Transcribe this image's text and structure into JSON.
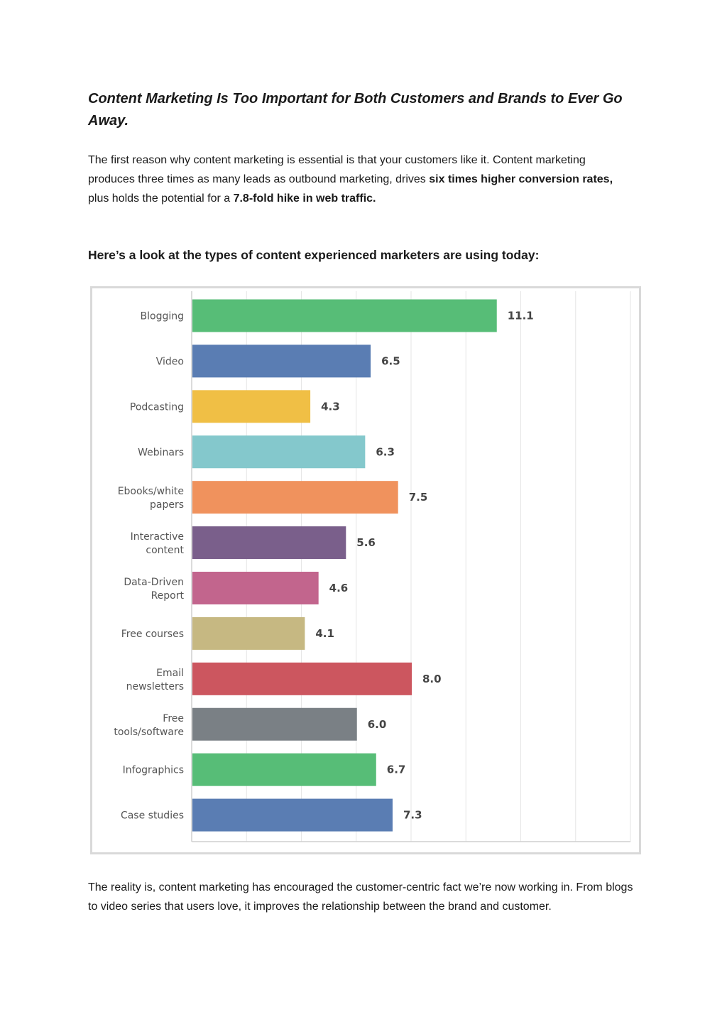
{
  "article": {
    "title": "Content Marketing Is Too Important for Both Customers and Brands to Ever Go Away.",
    "intro": {
      "t1": "The first reason why content marketing is essential is that your customers like it. Content marketing produces three times as many leads as outbound marketing, drives ",
      "b1": "six times higher conversion rates,",
      "t2": " plus holds the potential for a ",
      "b2": "7.8-fold hike in web traffic."
    },
    "subhead": "Here’s a look at the types of content experienced marketers are using today:",
    "closing": "The reality is, content marketing has encouraged the customer-centric fact we’re now working in. From blogs to video series that users love, it improves the relationship between the brand and customer."
  },
  "chart_data": {
    "type": "bar",
    "orientation": "horizontal",
    "title": "",
    "xlabel": "",
    "ylabel": "",
    "xlim": [
      0,
      16
    ],
    "grid": true,
    "categories": [
      [
        "Blogging"
      ],
      [
        "Video"
      ],
      [
        "Podcasting"
      ],
      [
        "Webinars"
      ],
      [
        "Ebooks/white",
        "papers"
      ],
      [
        "Interactive",
        "content"
      ],
      [
        "Data-Driven",
        "Report"
      ],
      [
        "Free courses"
      ],
      [
        "Email",
        "newsletters"
      ],
      [
        "Free",
        "tools/software"
      ],
      [
        "Infographics"
      ],
      [
        "Case studies"
      ]
    ],
    "values": [
      11.1,
      6.5,
      4.3,
      6.3,
      7.5,
      5.6,
      4.6,
      4.1,
      8.0,
      6.0,
      6.7,
      7.3
    ],
    "value_labels": [
      "11.1",
      "6.5",
      "4.3",
      "6.3",
      "7.5",
      "5.6",
      "4.6",
      "4.1",
      "8.0",
      "6.0",
      "6.7",
      "7.3"
    ],
    "colors": [
      "#57bd77",
      "#5a7db3",
      "#f0bf45",
      "#84c8cc",
      "#f0925d",
      "#7a5f8b",
      "#c2658d",
      "#c6b882",
      "#cc565f",
      "#7a8085",
      "#57bd77",
      "#5a7db3"
    ],
    "gridline_color": "#e6e6e6",
    "axis_color": "#cfcfcf"
  }
}
